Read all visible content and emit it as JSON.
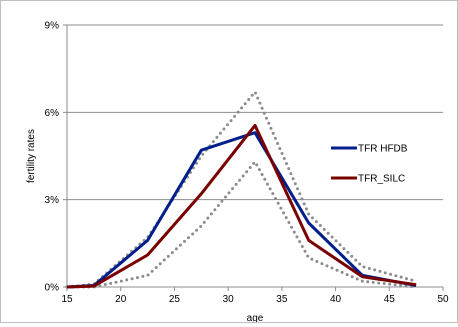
{
  "chart_data": {
    "type": "line",
    "xlabel": "age",
    "ylabel": "fertility rates",
    "xlim": [
      15,
      50
    ],
    "ylim": [
      0,
      0.09
    ],
    "x_ticks": [
      15,
      20,
      25,
      30,
      35,
      40,
      45,
      50
    ],
    "x_tick_labels": [
      "15",
      "20",
      "25",
      "30",
      "35",
      "40",
      "45",
      "50"
    ],
    "y_ticks": [
      0,
      0.03,
      0.06,
      0.09
    ],
    "y_tick_labels": [
      "0%",
      "3%",
      "6%",
      "9%"
    ],
    "grid": "horizontal",
    "legend_position": "right",
    "series": [
      {
        "name": "TFR HFDB",
        "color": "#001f8c",
        "style": "solid",
        "x": [
          15,
          17.5,
          22.5,
          27.5,
          32.5,
          37.5,
          42.5,
          47.5
        ],
        "y": [
          0.0,
          0.0005,
          0.016,
          0.047,
          0.053,
          0.022,
          0.004,
          0.0005
        ]
      },
      {
        "name": "TFR_SILC",
        "color": "#7a0000",
        "style": "solid",
        "x": [
          15,
          17.5,
          22.5,
          27.5,
          32.5,
          37.5,
          42.5,
          47.5
        ],
        "y": [
          0.0,
          0.0003,
          0.011,
          0.032,
          0.0555,
          0.016,
          0.0035,
          0.0008
        ]
      },
      {
        "color": "#8c8c8c",
        "style": "dotted",
        "x": [
          15,
          17.5,
          22.5,
          27.5,
          32.5,
          37.5,
          42.5,
          47.5
        ],
        "y": [
          0.0,
          0.001,
          0.017,
          0.045,
          0.067,
          0.025,
          0.007,
          0.002
        ]
      },
      {
        "color": "#8c8c8c",
        "style": "dotted",
        "x": [
          15,
          17.5,
          22.5,
          27.5,
          32.5,
          37.5,
          42.5,
          47.5
        ],
        "y": [
          0.0,
          0.0,
          0.004,
          0.021,
          0.043,
          0.01,
          0.002,
          0.0
        ]
      }
    ]
  }
}
